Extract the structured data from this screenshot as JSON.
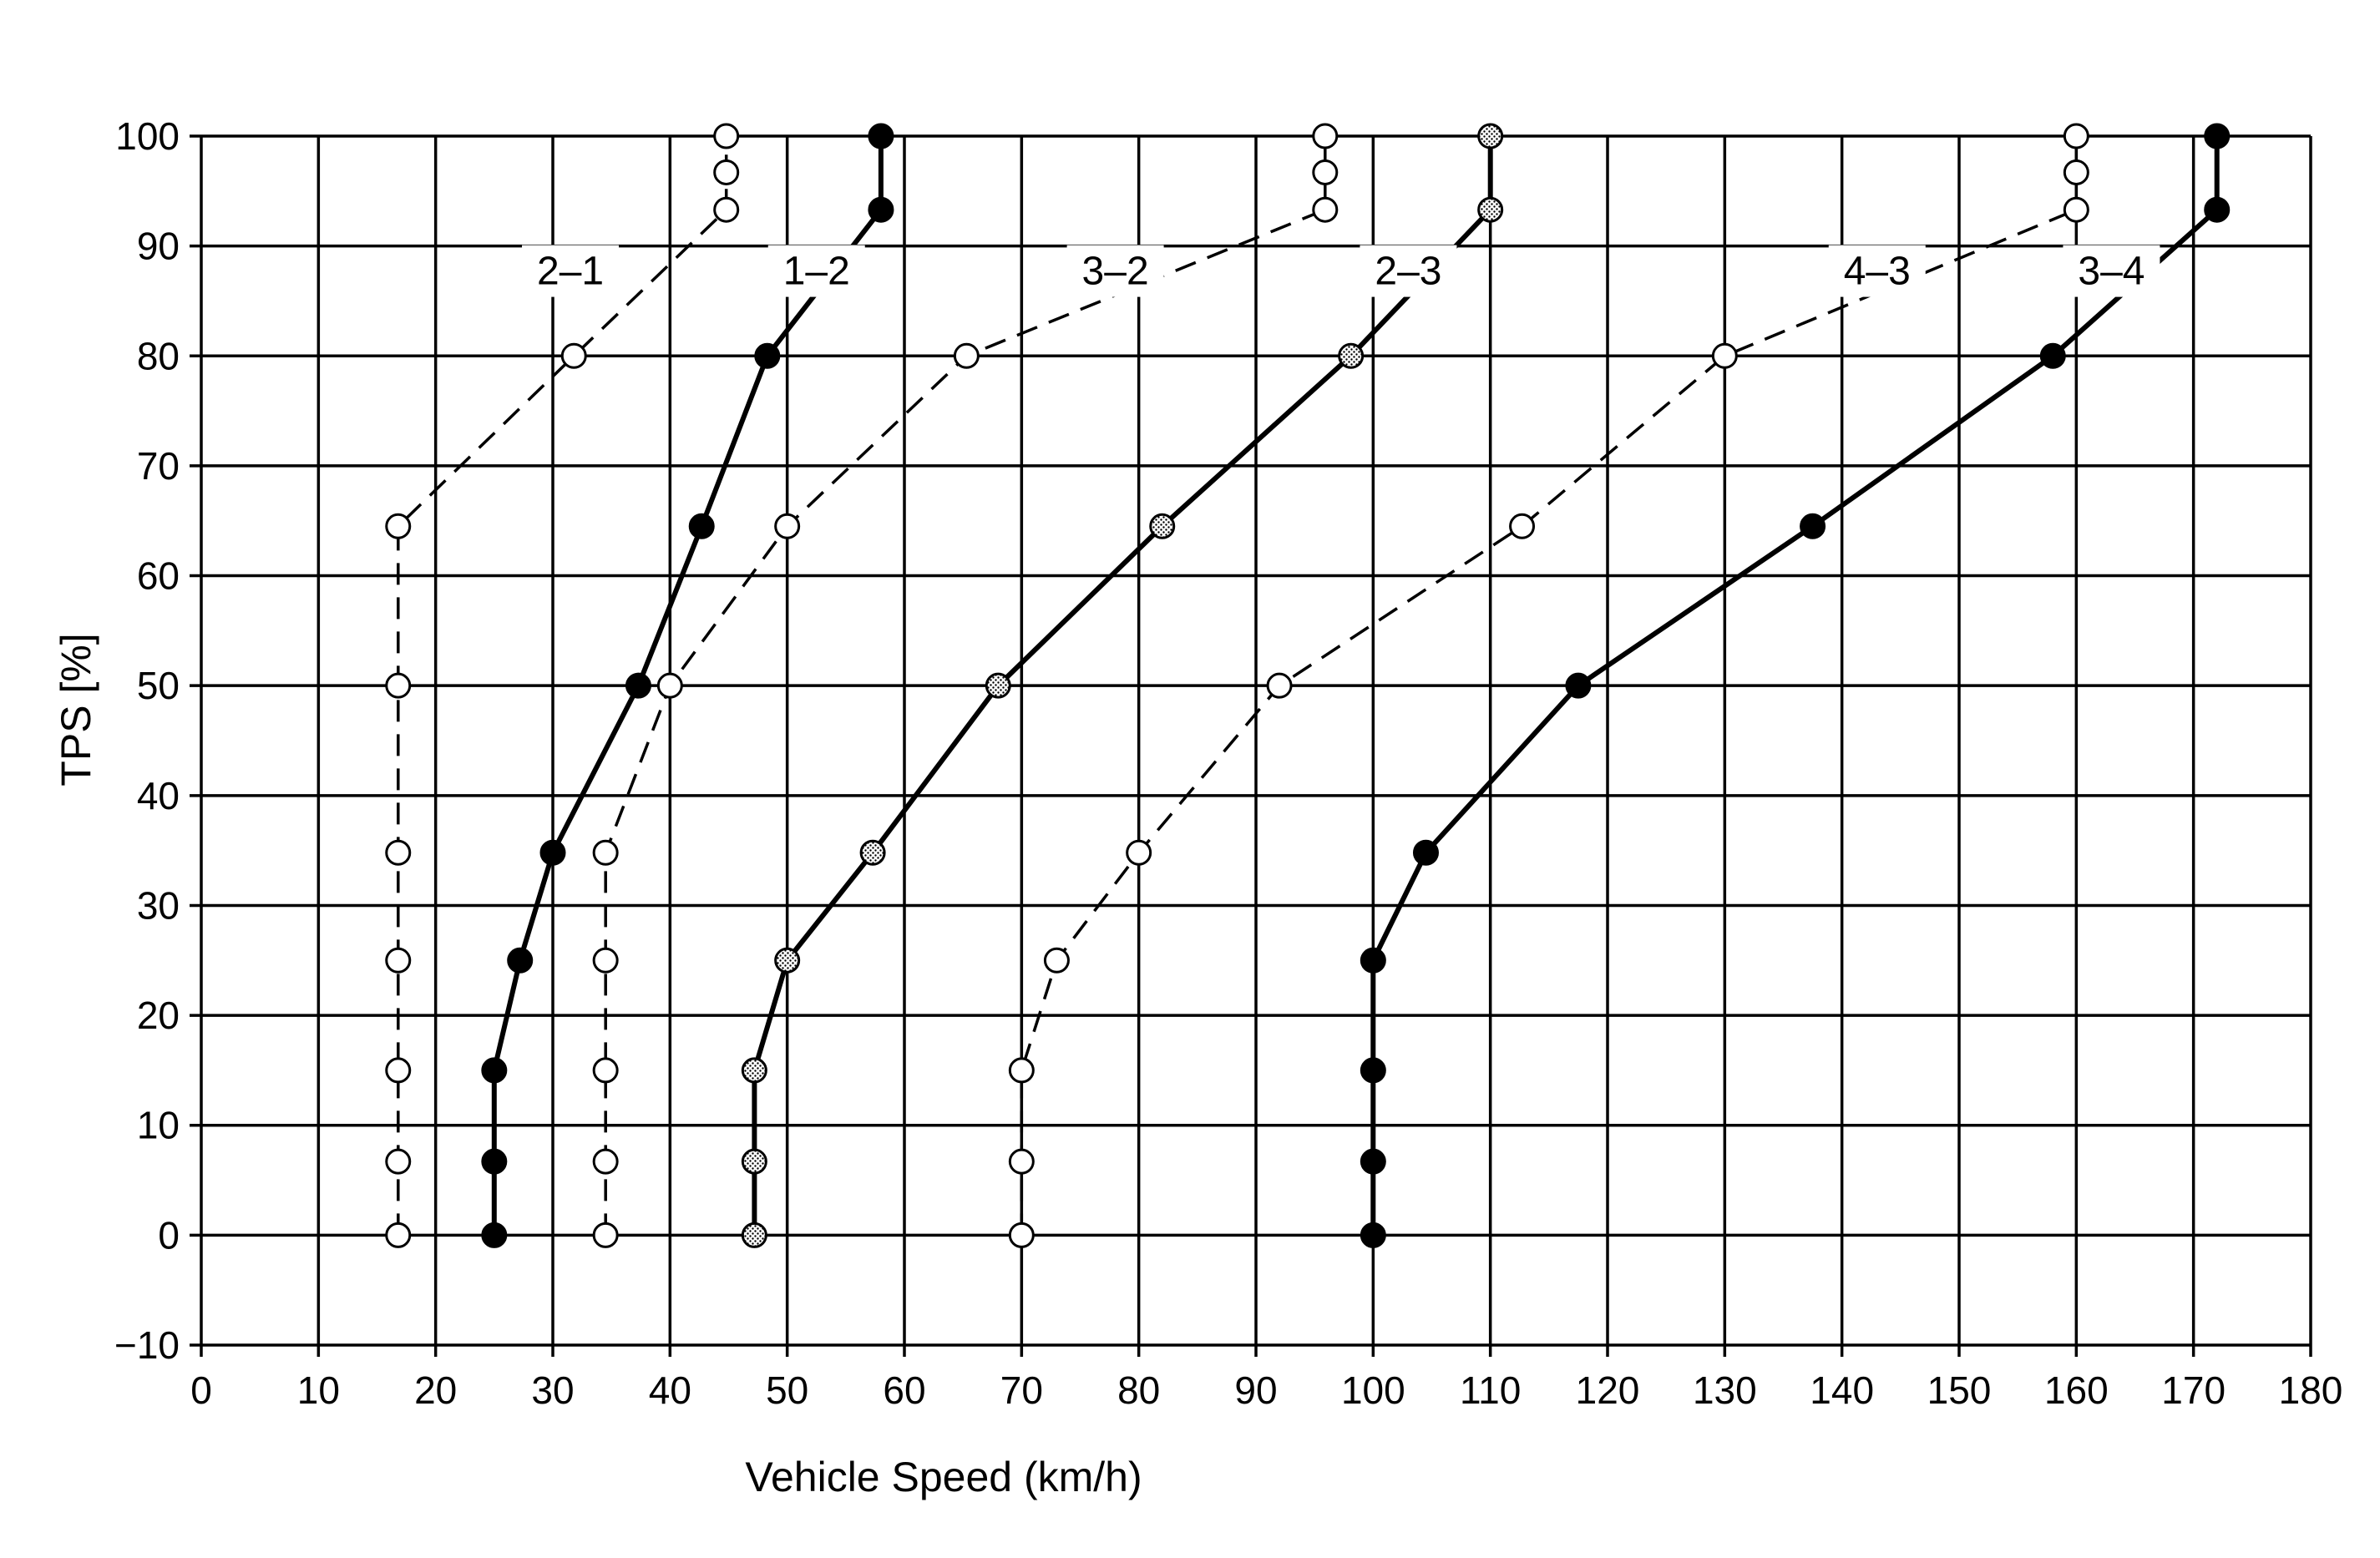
{
  "chart_data": {
    "type": "line",
    "title": "",
    "xlabel": "Vehicle Speed (km/h)",
    "ylabel": "TPS [%]",
    "xlim": [
      0,
      180
    ],
    "ylim": [
      -10,
      100
    ],
    "x_ticks": [
      0,
      10,
      20,
      30,
      40,
      50,
      60,
      70,
      80,
      90,
      100,
      110,
      120,
      130,
      140,
      150,
      160,
      170,
      180
    ],
    "y_ticks": [
      -10,
      0,
      10,
      20,
      30,
      40,
      50,
      60,
      70,
      80,
      90,
      100
    ],
    "grid": true,
    "legend": "labels placed on curves",
    "series": [
      {
        "name": "2–1",
        "style": "dashed",
        "marker": "open",
        "points": [
          [
            16.8,
            0
          ],
          [
            16.8,
            6.7
          ],
          [
            16.8,
            15
          ],
          [
            16.8,
            25
          ],
          [
            16.8,
            34.8
          ],
          [
            16.8,
            50
          ],
          [
            16.8,
            64.5
          ],
          [
            31.8,
            80
          ],
          [
            44.8,
            93.3
          ],
          [
            44.8,
            96.7
          ],
          [
            44.8,
            100
          ]
        ]
      },
      {
        "name": "1–2",
        "style": "solid",
        "marker": "filled",
        "points": [
          [
            25,
            0
          ],
          [
            25,
            6.7
          ],
          [
            25,
            15
          ],
          [
            27.2,
            25
          ],
          [
            30,
            34.8
          ],
          [
            37.3,
            50
          ],
          [
            42.7,
            64.5
          ],
          [
            48.3,
            80
          ],
          [
            58,
            93.3
          ],
          [
            58,
            100
          ]
        ]
      },
      {
        "name": "3–2",
        "style": "dashed",
        "marker": "open",
        "points": [
          [
            34.5,
            0
          ],
          [
            34.5,
            6.7
          ],
          [
            34.5,
            15
          ],
          [
            34.5,
            25
          ],
          [
            34.5,
            34.8
          ],
          [
            40,
            50
          ],
          [
            50,
            64.5
          ],
          [
            65.3,
            80
          ],
          [
            95.9,
            93.3
          ],
          [
            95.9,
            96.7
          ],
          [
            95.9,
            100
          ]
        ]
      },
      {
        "name": "2–3",
        "style": "solid",
        "marker": "dotted",
        "points": [
          [
            47.2,
            0
          ],
          [
            47.2,
            6.7
          ],
          [
            47.2,
            15
          ],
          [
            50,
            25
          ],
          [
            57.3,
            34.8
          ],
          [
            68,
            50
          ],
          [
            82,
            64.5
          ],
          [
            98.1,
            80
          ],
          [
            110,
            93.3
          ],
          [
            110,
            100
          ]
        ]
      },
      {
        "name": "4–3",
        "style": "dashed",
        "marker": "open",
        "points": [
          [
            70,
            0
          ],
          [
            70,
            6.7
          ],
          [
            70,
            15
          ],
          [
            73,
            25
          ],
          [
            80,
            34.8
          ],
          [
            92,
            50
          ],
          [
            112.7,
            64.5
          ],
          [
            130,
            80
          ],
          [
            160,
            93.3
          ],
          [
            160,
            96.7
          ],
          [
            160,
            100
          ]
        ]
      },
      {
        "name": "3–4",
        "style": "solid",
        "marker": "filled",
        "points": [
          [
            100,
            0
          ],
          [
            100,
            6.7
          ],
          [
            100,
            15
          ],
          [
            100,
            25
          ],
          [
            104.5,
            34.8
          ],
          [
            117.5,
            50
          ],
          [
            137.5,
            64.5
          ],
          [
            158,
            80
          ],
          [
            172,
            93.3
          ],
          [
            172,
            100
          ]
        ]
      }
    ]
  }
}
